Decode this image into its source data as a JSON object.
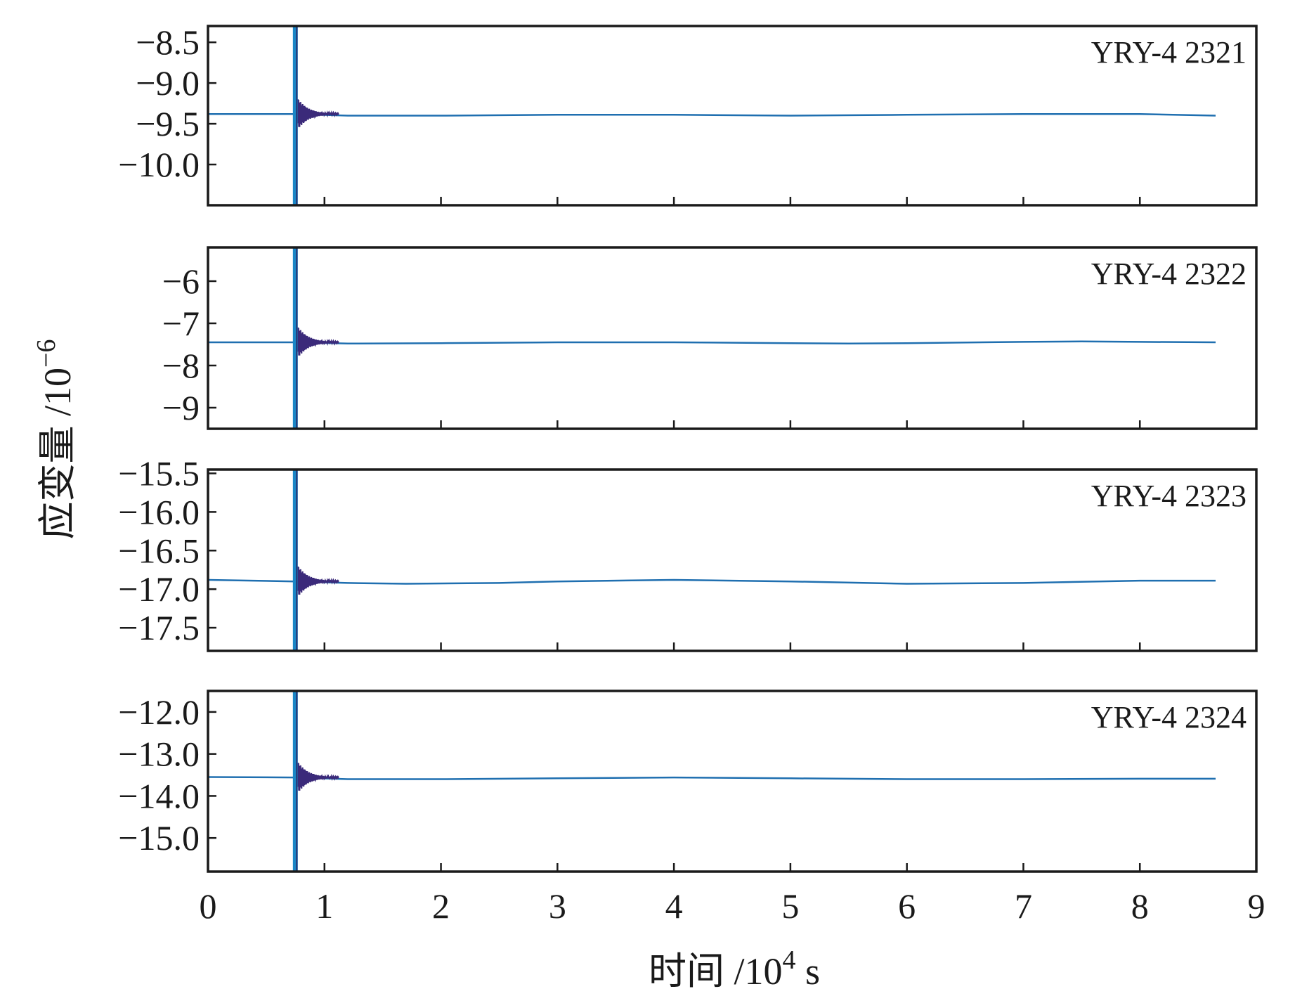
{
  "chart_data": {
    "type": "line",
    "xlabel": "时间 /10",
    "xlabel_sup": "4",
    "xlabel_unit": " s",
    "ylabel": "应变量 /10",
    "ylabel_sup": "−6",
    "xlim": [
      0,
      9
    ],
    "xticks": [
      0,
      1,
      2,
      3,
      4,
      5,
      6,
      7,
      8,
      9
    ],
    "xtick_labels": [
      "0",
      "1",
      "2",
      "3",
      "4",
      "5",
      "6",
      "7",
      "8",
      "9"
    ],
    "grid": false,
    "colors": {
      "trace": "#1f6fb0",
      "burst": "#3b2a7a",
      "spike": "#1a86c6"
    },
    "panels": [
      {
        "label": "YRY-4 2321",
        "ylim": [
          -10.5,
          -8.3
        ],
        "yticks": [
          -8.5,
          -9.0,
          -9.5,
          -10.0
        ],
        "ytick_labels": [
          "−8.5",
          "−9.0",
          "−9.5",
          "−10.0"
        ],
        "event_time": 0.75,
        "series": [
          {
            "x": [
              0,
              0.75,
              1.2,
              2,
              3,
              4,
              5,
              6,
              7,
              7.5,
              8,
              8.65
            ],
            "values": [
              -9.38,
              -9.38,
              -9.4,
              -9.4,
              -9.39,
              -9.39,
              -9.4,
              -9.39,
              -9.38,
              -9.38,
              -9.38,
              -9.4
            ]
          }
        ]
      },
      {
        "label": "YRY-4 2322",
        "ylim": [
          -9.5,
          -5.2
        ],
        "yticks": [
          -6,
          -7,
          -8,
          -9
        ],
        "ytick_labels": [
          "−6",
          "−7",
          "−8",
          "−9"
        ],
        "event_time": 0.75,
        "series": [
          {
            "x": [
              0,
              0.75,
              1.2,
              2,
              3,
              4,
              5,
              5.5,
              6,
              7,
              7.5,
              8,
              8.65
            ],
            "values": [
              -7.45,
              -7.45,
              -7.48,
              -7.47,
              -7.45,
              -7.45,
              -7.47,
              -7.48,
              -7.47,
              -7.44,
              -7.43,
              -7.44,
              -7.45
            ]
          }
        ]
      },
      {
        "label": "YRY-4 2323",
        "ylim": [
          -17.8,
          -15.45
        ],
        "yticks": [
          -15.5,
          -16.0,
          -16.5,
          -17.0,
          -17.5
        ],
        "ytick_labels": [
          "−15.5",
          "−16.0",
          "−16.5",
          "−17.0",
          "−17.5"
        ],
        "event_time": 0.75,
        "series": [
          {
            "x": [
              0,
              0.75,
              1.2,
              1.7,
              2.5,
              3,
              4,
              5,
              6,
              7,
              8,
              8.65
            ],
            "values": [
              -16.88,
              -16.9,
              -16.92,
              -16.93,
              -16.92,
              -16.9,
              -16.88,
              -16.9,
              -16.93,
              -16.92,
              -16.89,
              -16.89
            ]
          }
        ]
      },
      {
        "label": "YRY-4 2324",
        "ylim": [
          -15.8,
          -11.5
        ],
        "yticks": [
          -12.0,
          -13.0,
          -14.0,
          -15.0
        ],
        "ytick_labels": [
          "−12.0",
          "−13.0",
          "−14.0",
          "−15.0"
        ],
        "event_time": 0.75,
        "series": [
          {
            "x": [
              0,
              0.75,
              1.2,
              2,
              3,
              4,
              5,
              6,
              7,
              8,
              8.65
            ],
            "values": [
              -13.55,
              -13.56,
              -13.6,
              -13.6,
              -13.58,
              -13.56,
              -13.58,
              -13.6,
              -13.6,
              -13.59,
              -13.59
            ]
          }
        ]
      }
    ]
  }
}
